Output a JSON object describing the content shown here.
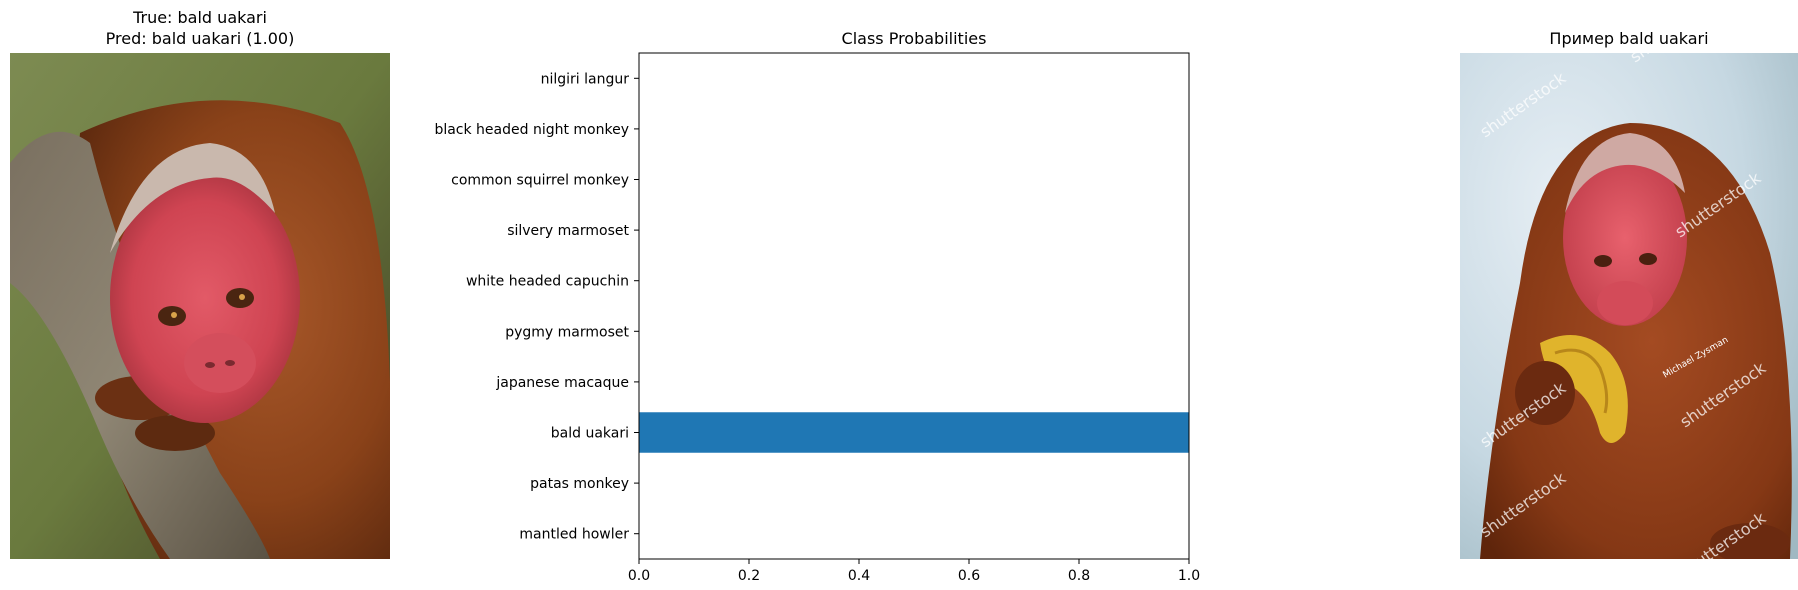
{
  "left_panel": {
    "title_line1": "True: bald uakari",
    "title_line2": "Pred: bald uakari (1.00)"
  },
  "right_panel": {
    "title": "Пример bald uakari",
    "watermark": "shutterstock",
    "photographer_credit": "Michael Zysman"
  },
  "chart_data": {
    "type": "bar",
    "orientation": "horizontal",
    "title": "Class Probabilities",
    "categories": [
      "nilgiri langur",
      "black headed night monkey",
      "common squirrel monkey",
      "silvery marmoset",
      "white headed capuchin",
      "pygmy marmoset",
      "japanese macaque",
      "bald uakari",
      "patas monkey",
      "mantled howler"
    ],
    "values": [
      0,
      0,
      0,
      0,
      0,
      0,
      0,
      1.0,
      0,
      0
    ],
    "xlim": [
      0,
      1.0
    ],
    "xticks": [
      "0.0",
      "0.2",
      "0.4",
      "0.6",
      "0.8",
      "1.0"
    ],
    "xlabel": "",
    "ylabel": "",
    "grid": false,
    "bar_color": "#1f77b4"
  }
}
